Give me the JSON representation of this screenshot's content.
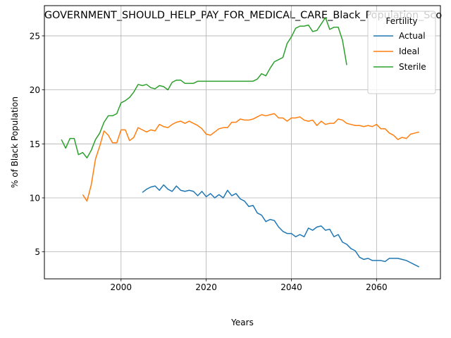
{
  "chart_data": {
    "type": "line",
    "title": "GOVERNMENT_SHOULD_HELP_PAY_FOR_MEDICAL_CARE_Black_Population_Sco",
    "xlabel": "Years",
    "ylabel": "% of Black Population",
    "xlim": [
      1982,
      2075
    ],
    "ylim": [
      2.5,
      27.8
    ],
    "xticks": [
      2000,
      2020,
      2040,
      2060
    ],
    "yticks": [
      5,
      10,
      15,
      20,
      25
    ],
    "grid": true,
    "legend": {
      "title": "Fertility",
      "placement": "top-right"
    },
    "series": [
      {
        "name": "Actual",
        "color": "#1f77b4",
        "x": [
          2005,
          2006,
          2007,
          2008,
          2009,
          2010,
          2011,
          2012,
          2013,
          2014,
          2015,
          2016,
          2017,
          2018,
          2019,
          2020,
          2021,
          2022,
          2023,
          2024,
          2025,
          2026,
          2027,
          2028,
          2029,
          2030,
          2031,
          2032,
          2033,
          2034,
          2035,
          2036,
          2037,
          2038,
          2039,
          2040,
          2041,
          2042,
          2043,
          2044,
          2045,
          2046,
          2047,
          2048,
          2049,
          2050,
          2051,
          2052,
          2053,
          2054,
          2055,
          2056,
          2057,
          2058,
          2059,
          2060,
          2061,
          2062,
          2063,
          2064,
          2065,
          2066,
          2067,
          2068,
          2069,
          2070
        ],
        "values": [
          10.5,
          10.8,
          11.0,
          11.1,
          10.7,
          11.2,
          10.8,
          10.6,
          11.1,
          10.7,
          10.6,
          10.7,
          10.6,
          10.2,
          10.6,
          10.1,
          10.4,
          10.0,
          10.3,
          10.0,
          10.7,
          10.2,
          10.4,
          9.9,
          9.7,
          9.2,
          9.3,
          8.6,
          8.4,
          7.8,
          8.0,
          7.9,
          7.3,
          6.9,
          6.7,
          6.7,
          6.4,
          6.6,
          6.4,
          7.2,
          7.0,
          7.3,
          7.4,
          7.0,
          7.1,
          6.4,
          6.6,
          5.9,
          5.7,
          5.3,
          5.1,
          4.5,
          4.3,
          4.4,
          4.2,
          4.2,
          4.2,
          4.1,
          4.4,
          4.4,
          4.4,
          4.3,
          4.2,
          4.0,
          3.8,
          3.6
        ]
      },
      {
        "name": "Ideal",
        "color": "#ff7f0e",
        "x": [
          1991,
          1992,
          1993,
          1994,
          1995,
          1996,
          1997,
          1998,
          1999,
          2000,
          2001,
          2002,
          2003,
          2004,
          2005,
          2006,
          2007,
          2008,
          2009,
          2010,
          2011,
          2012,
          2013,
          2014,
          2015,
          2016,
          2017,
          2018,
          2019,
          2020,
          2021,
          2022,
          2023,
          2024,
          2025,
          2026,
          2027,
          2028,
          2029,
          2030,
          2031,
          2032,
          2033,
          2034,
          2035,
          2036,
          2037,
          2038,
          2039,
          2040,
          2041,
          2042,
          2043,
          2044,
          2045,
          2046,
          2047,
          2048,
          2049,
          2050,
          2051,
          2052,
          2053,
          2054,
          2055,
          2056,
          2057,
          2058,
          2059,
          2060,
          2061,
          2062,
          2063,
          2064,
          2065,
          2066,
          2067,
          2068,
          2069,
          2070
        ],
        "values": [
          10.3,
          9.7,
          11.2,
          13.6,
          14.8,
          16.2,
          15.8,
          15.1,
          15.1,
          16.3,
          16.3,
          15.3,
          15.6,
          16.5,
          16.3,
          16.1,
          16.3,
          16.2,
          16.8,
          16.6,
          16.5,
          16.8,
          17.0,
          17.1,
          16.9,
          17.1,
          16.9,
          16.7,
          16.4,
          15.9,
          15.8,
          16.1,
          16.4,
          16.5,
          16.5,
          17.0,
          17.0,
          17.3,
          17.2,
          17.2,
          17.3,
          17.5,
          17.7,
          17.6,
          17.7,
          17.8,
          17.4,
          17.4,
          17.1,
          17.4,
          17.4,
          17.5,
          17.2,
          17.1,
          17.2,
          16.7,
          17.1,
          16.8,
          16.9,
          16.9,
          17.3,
          17.2,
          16.9,
          16.8,
          16.7,
          16.7,
          16.6,
          16.7,
          16.6,
          16.8,
          16.4,
          16.4,
          16.0,
          15.8,
          15.4,
          15.6,
          15.5,
          15.9,
          16.0,
          16.1
        ]
      },
      {
        "name": "Sterile",
        "color": "#2ca02c",
        "x": [
          1986,
          1987,
          1988,
          1989,
          1990,
          1991,
          1992,
          1993,
          1994,
          1995,
          1996,
          1997,
          1998,
          1999,
          2000,
          2001,
          2002,
          2003,
          2004,
          2005,
          2006,
          2007,
          2008,
          2009,
          2010,
          2011,
          2012,
          2013,
          2014,
          2015,
          2016,
          2017,
          2018,
          2019,
          2020,
          2021,
          2022,
          2023,
          2024,
          2025,
          2026,
          2027,
          2028,
          2029,
          2030,
          2031,
          2032,
          2033,
          2034,
          2035,
          2036,
          2037,
          2038,
          2039,
          2040,
          2041,
          2042,
          2043,
          2044,
          2045,
          2046,
          2047,
          2048,
          2049,
          2050,
          2051,
          2052,
          2053
        ],
        "values": [
          15.4,
          14.6,
          15.5,
          15.5,
          14.0,
          14.2,
          13.7,
          14.4,
          15.4,
          16.0,
          17.0,
          17.6,
          17.6,
          17.8,
          18.8,
          19.0,
          19.3,
          19.8,
          20.5,
          20.4,
          20.5,
          20.2,
          20.1,
          20.4,
          20.3,
          20.0,
          20.7,
          20.9,
          20.9,
          20.6,
          20.6,
          20.6,
          20.8,
          20.8,
          20.8,
          20.8,
          20.8,
          20.8,
          20.8,
          20.8,
          20.8,
          20.8,
          20.8,
          20.8,
          20.8,
          20.8,
          21.0,
          21.5,
          21.3,
          22.0,
          22.6,
          22.8,
          23.0,
          24.3,
          24.9,
          25.7,
          25.9,
          25.9,
          26.0,
          25.4,
          25.5,
          26.1,
          26.7,
          25.6,
          25.8,
          25.8,
          24.6,
          22.3
        ]
      }
    ]
  }
}
